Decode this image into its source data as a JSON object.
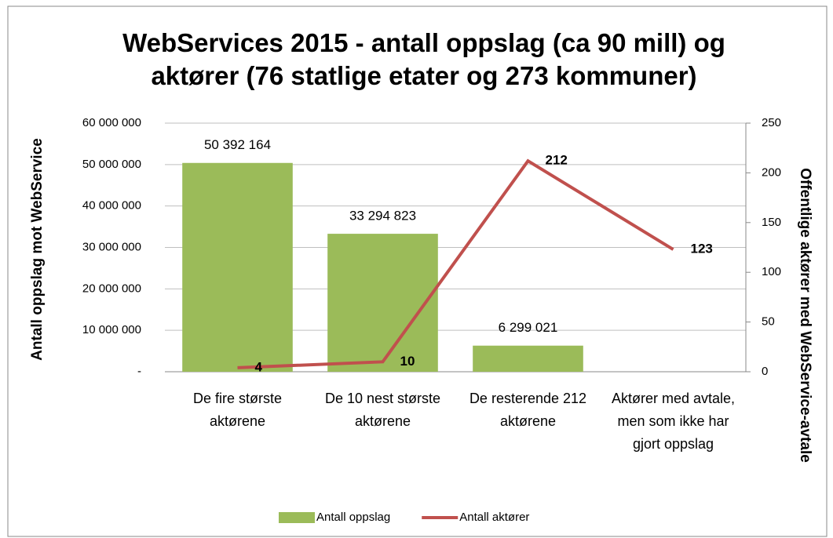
{
  "chart_data": {
    "type": "bar",
    "title": "WebServices 2015 - antall oppslag (ca 90 mill) og aktører (76 statlige etater og 273 kommuner)",
    "categories": [
      "De fire største aktørene",
      "De 10 nest største aktørene",
      "De resterende 212 aktørene",
      "Aktører med avtale, men som ikke har gjort oppslag"
    ],
    "series": [
      {
        "name": "Antall oppslag",
        "type": "bar",
        "color": "#9bbb59",
        "values": [
          50392164,
          33294823,
          6299021,
          null
        ],
        "value_labels": [
          "50 392 164",
          "33 294 823",
          "6 299 021",
          null
        ]
      },
      {
        "name": "Antall aktører",
        "type": "line",
        "axis": "y2",
        "color": "#c0504d",
        "values": [
          4,
          10,
          212,
          123
        ]
      }
    ],
    "ylabel": "Antall oppslag mot WebService",
    "y2label": "Offentlige aktører med WebService-avtale",
    "ylim": [
      0,
      60000000
    ],
    "yticks": [
      {
        "value": 0,
        "label": "-"
      },
      {
        "value": 10000000,
        "label": "10 000 000"
      },
      {
        "value": 20000000,
        "label": "20 000 000"
      },
      {
        "value": 30000000,
        "label": "30 000 000"
      },
      {
        "value": 40000000,
        "label": "40 000 000"
      },
      {
        "value": 50000000,
        "label": "50 000 000"
      },
      {
        "value": 60000000,
        "label": "60 000 000"
      }
    ],
    "y2lim": [
      0,
      250
    ],
    "y2ticks": [
      0,
      50,
      100,
      150,
      200,
      250
    ],
    "grid": true,
    "legend": "bottom"
  }
}
